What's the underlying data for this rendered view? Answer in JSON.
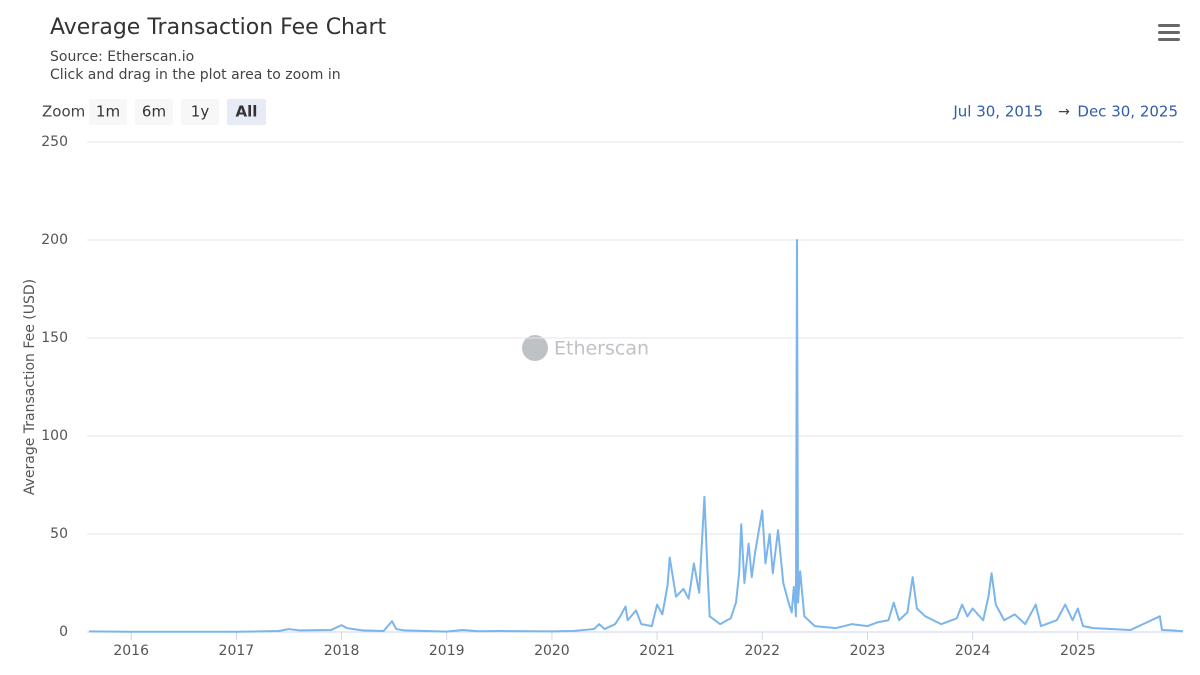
{
  "chart_data": {
    "type": "line",
    "title": "Average Transaction Fee Chart",
    "subtitle": [
      "Source: Etherscan.io",
      "Click and drag in the plot area to zoom in"
    ],
    "ylabel": "Average Transaction Fee (USD)",
    "watermark": "Etherscan",
    "color": "#7cb5ec",
    "grid": true,
    "xlim": [
      2015.58,
      2026.0
    ],
    "xticks": [
      2016,
      2017,
      2018,
      2019,
      2020,
      2021,
      2022,
      2023,
      2024,
      2025
    ],
    "ylim": [
      0,
      250
    ],
    "yticks": [
      0,
      50,
      100,
      150,
      200,
      250
    ],
    "x": [
      2015.6,
      2016.0,
      2016.5,
      2017.0,
      2017.4,
      2017.5,
      2017.6,
      2017.9,
      2018.0,
      2018.05,
      2018.2,
      2018.4,
      2018.48,
      2018.52,
      2018.6,
      2019.0,
      2019.15,
      2019.3,
      2019.5,
      2020.0,
      2020.2,
      2020.4,
      2020.45,
      2020.5,
      2020.6,
      2020.65,
      2020.7,
      2020.72,
      2020.8,
      2020.85,
      2020.95,
      2021.0,
      2021.05,
      2021.1,
      2021.12,
      2021.18,
      2021.25,
      2021.3,
      2021.35,
      2021.4,
      2021.45,
      2021.48,
      2021.5,
      2021.6,
      2021.7,
      2021.75,
      2021.78,
      2021.8,
      2021.83,
      2021.87,
      2021.9,
      2021.93,
      2022.0,
      2022.03,
      2022.07,
      2022.1,
      2022.15,
      2022.2,
      2022.25,
      2022.28,
      2022.3,
      2022.32,
      2022.33,
      2022.34,
      2022.36,
      2022.4,
      2022.5,
      2022.7,
      2022.85,
      2023.0,
      2023.1,
      2023.2,
      2023.25,
      2023.3,
      2023.38,
      2023.43,
      2023.47,
      2023.55,
      2023.7,
      2023.85,
      2023.9,
      2023.95,
      2024.0,
      2024.1,
      2024.15,
      2024.18,
      2024.22,
      2024.3,
      2024.4,
      2024.5,
      2024.6,
      2024.65,
      2024.8,
      2024.88,
      2024.95,
      2025.0,
      2025.05,
      2025.15,
      2025.5,
      2025.78,
      2025.8,
      2025.9,
      2026.0
    ],
    "values": [
      0.3,
      0.1,
      0.1,
      0.1,
      0.5,
      1.5,
      0.8,
      1,
      3.5,
      2,
      0.8,
      0.5,
      5.5,
      1.5,
      0.8,
      0.2,
      1,
      0.4,
      0.5,
      0.3,
      0.5,
      1.5,
      4,
      1.5,
      4,
      8,
      13,
      6,
      11,
      4,
      3,
      14,
      9,
      24,
      38,
      18,
      22,
      17,
      35,
      20,
      69,
      30,
      8,
      4,
      7,
      15,
      30,
      55,
      25,
      45,
      28,
      40,
      62,
      35,
      50,
      30,
      52,
      25,
      15,
      10,
      23,
      8,
      200,
      15,
      31,
      8,
      3,
      2,
      4,
      3,
      5,
      6,
      15,
      6,
      10,
      28,
      12,
      8,
      4,
      7,
      14,
      8,
      12,
      6,
      18,
      30,
      14,
      6,
      9,
      4,
      14,
      3,
      6,
      14,
      6,
      12,
      3,
      2,
      1,
      8,
      1,
      0.8,
      0.3
    ]
  },
  "controls": {
    "zoom_label": "Zoom",
    "zoom_buttons": [
      "1m",
      "6m",
      "1y",
      "All"
    ],
    "active_zoom": 3,
    "range_from": "Jul 30, 2015",
    "range_separator": "→",
    "range_to": "Dec 30, 2025"
  }
}
